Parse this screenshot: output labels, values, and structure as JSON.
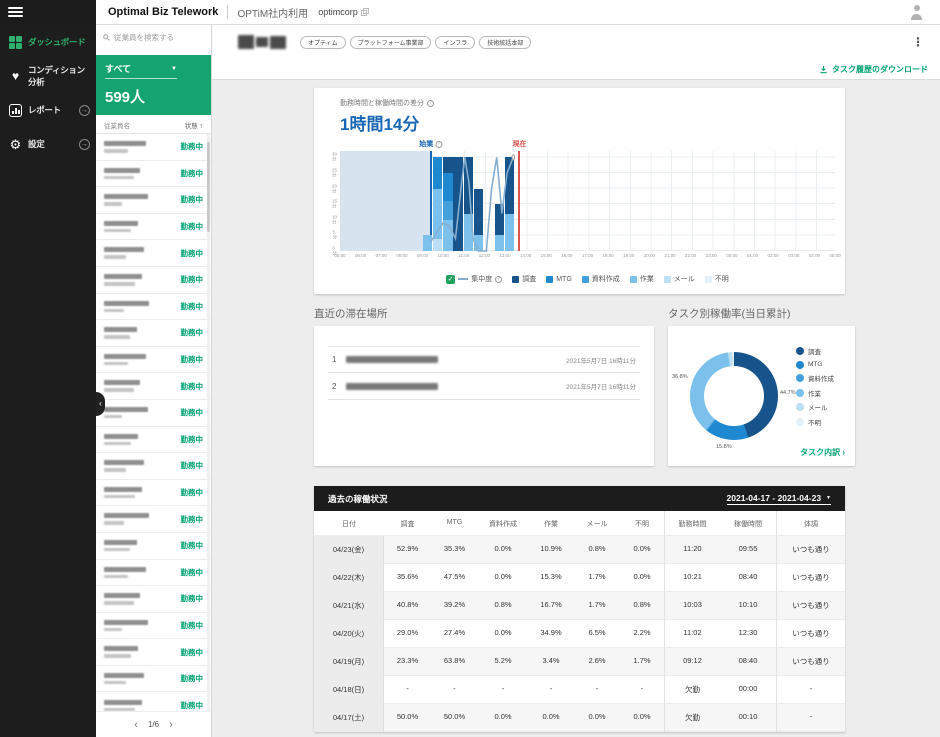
{
  "topbar": {
    "app_title": "Optimal Biz Telework",
    "workspace": "OPTiM社内利用",
    "org": "optimcorp"
  },
  "sidebar": {
    "items": [
      {
        "label": "ダッシュボード",
        "icon": "dashboard-icon",
        "active": true,
        "arrow": false
      },
      {
        "label": "コンディション分析",
        "icon": "condition-icon",
        "active": false,
        "arrow": false
      },
      {
        "label": "レポート",
        "icon": "report-icon",
        "active": false,
        "arrow": true
      },
      {
        "label": "設定",
        "icon": "settings-icon",
        "active": false,
        "arrow": true
      }
    ]
  },
  "employee_panel": {
    "search_placeholder": "従業員を検索する",
    "filter_selected": "すべて",
    "count_label": "599人",
    "name_header": "従業員名",
    "status_header": "状態",
    "status_label": "勤務中",
    "row_count": 22,
    "page_label": "1/6"
  },
  "profile_header": {
    "tags": [
      "オプティム",
      "プラットフォーム事業部",
      "インフラ",
      "技術統括本部"
    ],
    "download_label": "タスク履歴のダウンロード"
  },
  "chart_data": [
    {
      "type": "bar",
      "title": "勤務時間と稼働時間の差分",
      "headline_value": "1時間14分",
      "start_marker": "始業",
      "now_marker": "現在",
      "legend_line": "集中度",
      "x_start_hour": 5,
      "x_end_hour": 29,
      "x_labels": [
        "05:00",
        "06:00",
        "07:00",
        "08:00",
        "09:00",
        "10:00",
        "11:00",
        "12:00",
        "13:00",
        "14:00",
        "15:00",
        "16:00",
        "17:00",
        "18:00",
        "19:00",
        "20:00",
        "21:00",
        "22:00",
        "23:00",
        "00:00",
        "01:00",
        "02:00",
        "03:00",
        "04:00",
        "05:00"
      ],
      "y_labels": [
        30,
        25,
        20,
        15,
        10,
        5,
        0
      ],
      "y_unit": "分",
      "ylim": [
        0,
        32
      ],
      "work_start_hour": 9.4,
      "current_hour": 13.7,
      "categories": [
        "調査",
        "MTG",
        "資料作成",
        "作業",
        "メール",
        "不明"
      ],
      "colors": {
        "調査": "#17548c",
        "MTG": "#1e88d0",
        "資料作成": "#44a0dc",
        "作業": "#7cc0ec",
        "メール": "#bcdff6",
        "不明": "#e2f1fb"
      },
      "line_color": "#85aed0",
      "bars": [
        {
          "hour": 9.0,
          "segments": {
            "作業": 5
          }
        },
        {
          "hour": 9.5,
          "segments": {
            "メール": 4,
            "作業": 16,
            "MTG": 10
          }
        },
        {
          "hour": 10.0,
          "segments": {
            "作業": 10,
            "資料作成": 6,
            "MTG": 9,
            "調査": 5
          }
        },
        {
          "hour": 10.5,
          "segments": {
            "調査": 30
          }
        },
        {
          "hour": 11.0,
          "segments": {
            "作業": 12,
            "調査": 18
          }
        },
        {
          "hour": 11.5,
          "segments": {
            "作業": 5,
            "調査": 15
          }
        },
        {
          "hour": 12.5,
          "segments": {
            "作業": 5,
            "調査": 10
          }
        },
        {
          "hour": 13.0,
          "segments": {
            "作業": 12,
            "調査": 18
          }
        }
      ],
      "line_points": [
        [
          9.4,
          3
        ],
        [
          9.7,
          6
        ],
        [
          10.0,
          9
        ],
        [
          10.3,
          8
        ],
        [
          10.6,
          4
        ],
        [
          10.9,
          22
        ],
        [
          11.05,
          30
        ],
        [
          11.25,
          22
        ],
        [
          11.45,
          4
        ],
        [
          11.7,
          0
        ],
        [
          12.1,
          0
        ],
        [
          12.35,
          20
        ],
        [
          12.6,
          30
        ],
        [
          12.85,
          12
        ],
        [
          13.1,
          25
        ],
        [
          13.4,
          30
        ]
      ]
    },
    {
      "type": "pie",
      "title": "タスク別稼働率(当日累計)",
      "series": [
        {
          "name": "調査",
          "value": 44.7,
          "color": "#17548c"
        },
        {
          "name": "MTG",
          "value": 15.8,
          "color": "#1e88d0"
        },
        {
          "name": "資料作成",
          "value": 0.5,
          "color": "#44a0dc"
        },
        {
          "name": "作業",
          "value": 36.8,
          "color": "#7cc0ec"
        },
        {
          "name": "メール",
          "value": 1.5,
          "color": "#bcdff6"
        },
        {
          "name": "不明",
          "value": 0.7,
          "color": "#e2f1fb"
        }
      ],
      "visible_labels": [
        "44.7%",
        "15.8%",
        "36.8%"
      ],
      "link_label": "タスク内訳"
    }
  ],
  "locations": {
    "title": "直近の滞在場所",
    "rows": [
      {
        "rank": "1",
        "time": "2021年5月7日 16時11分"
      },
      {
        "rank": "2",
        "time": "2021年5月7日 16時11分"
      }
    ]
  },
  "history": {
    "title": "過去の稼働状況",
    "date_range": "2021-04-17 - 2021-04-23",
    "headers": [
      "日付",
      "調査",
      "MTG",
      "資料作成",
      "作業",
      "メール",
      "不明",
      "勤務時間",
      "稼働時間",
      "体調"
    ],
    "rows": [
      [
        "04/23(金)",
        "52.9%",
        "35.3%",
        "0.0%",
        "10.9%",
        "0.8%",
        "0.0%",
        "11:20",
        "09:55",
        "いつも通り"
      ],
      [
        "04/22(木)",
        "35.6%",
        "47.5%",
        "0.0%",
        "15.3%",
        "1.7%",
        "0.0%",
        "10:21",
        "08:40",
        "いつも通り"
      ],
      [
        "04/21(水)",
        "40.8%",
        "39.2%",
        "0.8%",
        "16.7%",
        "1.7%",
        "0.8%",
        "10:03",
        "10:10",
        "いつも通り"
      ],
      [
        "04/20(火)",
        "29.0%",
        "27.4%",
        "0.0%",
        "34.9%",
        "6.5%",
        "2.2%",
        "11:02",
        "12:30",
        "いつも通り"
      ],
      [
        "04/19(月)",
        "23.3%",
        "63.8%",
        "5.2%",
        "3.4%",
        "2.6%",
        "1.7%",
        "09:12",
        "08:40",
        "いつも通り"
      ],
      [
        "04/18(日)",
        "-",
        "-",
        "-",
        "-",
        "-",
        "-",
        "欠勤",
        "00:00",
        "-"
      ],
      [
        "04/17(土)",
        "50.0%",
        "50.0%",
        "0.0%",
        "0.0%",
        "0.0%",
        "0.0%",
        "欠勤",
        "00:10",
        "-"
      ]
    ]
  }
}
